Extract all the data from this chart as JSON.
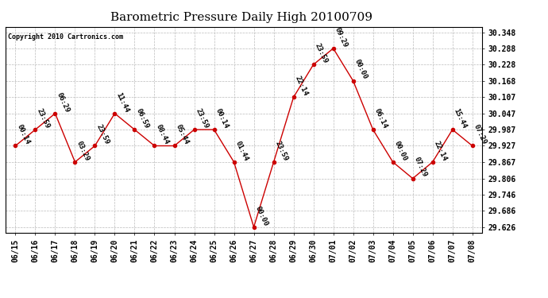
{
  "title": "Barometric Pressure Daily High 20100709",
  "copyright": "Copyright 2010 Cartronics.com",
  "x_labels": [
    "06/15",
    "06/16",
    "06/17",
    "06/18",
    "06/19",
    "06/20",
    "06/21",
    "06/22",
    "06/23",
    "06/24",
    "06/25",
    "06/26",
    "06/27",
    "06/28",
    "06/29",
    "06/30",
    "07/01",
    "07/02",
    "07/03",
    "07/04",
    "07/05",
    "07/06",
    "07/07",
    "07/08"
  ],
  "y_values": [
    29.927,
    29.987,
    30.047,
    29.867,
    29.927,
    30.047,
    29.987,
    29.927,
    29.927,
    29.987,
    29.987,
    29.867,
    29.626,
    29.867,
    30.107,
    30.228,
    30.288,
    30.168,
    29.987,
    29.867,
    29.806,
    29.867,
    29.987,
    29.927
  ],
  "point_labels": [
    "00:14",
    "23:59",
    "06:29",
    "03:29",
    "23:59",
    "11:44",
    "06:59",
    "08:44",
    "05:44",
    "23:59",
    "00:14",
    "01:44",
    "00:00",
    "23:59",
    "22:14",
    "23:59",
    "09:29",
    "00:00",
    "06:14",
    "00:00",
    "07:29",
    "22:14",
    "15:44",
    "07:29"
  ],
  "y_min": 29.606,
  "y_max": 29.368,
  "y_ticks": [
    29.626,
    29.686,
    29.746,
    29.806,
    29.867,
    29.927,
    29.987,
    30.047,
    30.107,
    30.168,
    30.228,
    30.288,
    30.348
  ],
  "line_color": "#cc0000",
  "marker_color": "#cc0000",
  "bg_color": "#ffffff",
  "grid_color": "#bbbbbb",
  "title_fontsize": 11,
  "label_fontsize": 6.5,
  "tick_fontsize": 7,
  "copyright_fontsize": 6
}
